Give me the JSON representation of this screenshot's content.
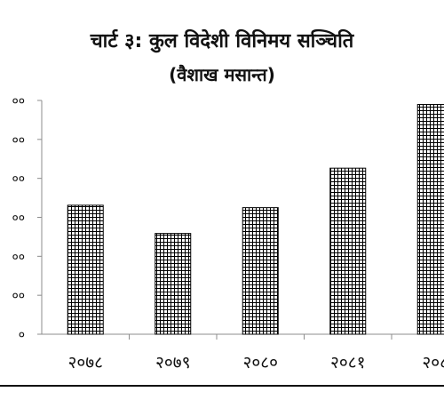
{
  "chart_data": {
    "type": "bar",
    "title": "चार्ट ३: कुल विदेशी विनिमय सञ्चिति",
    "subtitle": "(वैशाख मसान्त)",
    "categories": [
      "२०७८",
      "२०७९",
      "२०८०",
      "२०८१",
      "२०८"
    ],
    "values": [
      1600,
      1250,
      1570,
      2060,
      2850
    ],
    "yticks": [
      "०",
      "००",
      "००",
      "००",
      "००",
      "००",
      "००"
    ],
    "ylim": [
      0,
      2900
    ],
    "grid": false,
    "legend": "none",
    "bar_pattern": "crosshatch",
    "colors": {
      "bar": "#000000",
      "axis": "#8c8c8c",
      "text": "#111111"
    }
  }
}
